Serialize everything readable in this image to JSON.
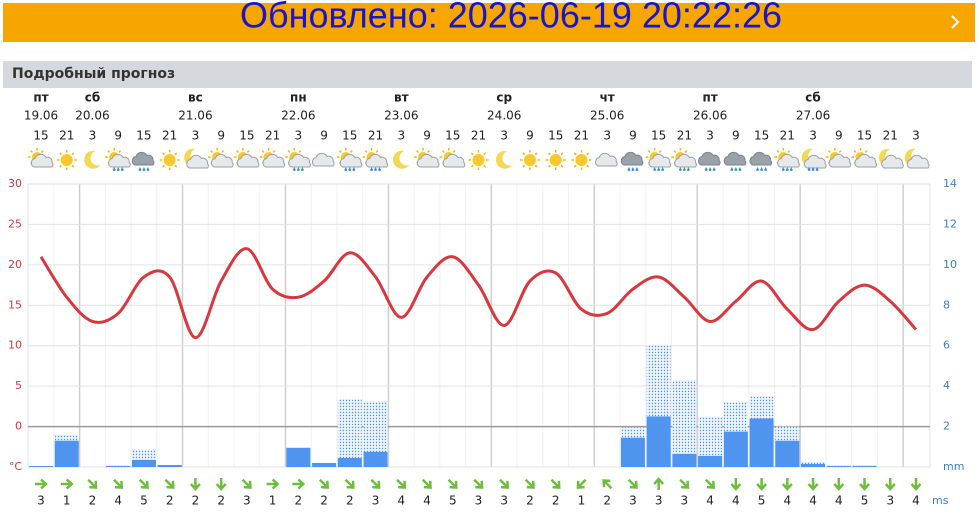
{
  "banner": {
    "updated": "Обновлено: 2026-06-19 20:22:26"
  },
  "section_title": "Подробный прогноз",
  "days": [
    {
      "name": "пт",
      "date": "19.06"
    },
    {
      "name": "сб",
      "date": "20.06"
    },
    {
      "name": "вс",
      "date": "21.06"
    },
    {
      "name": "пн",
      "date": "22.06"
    },
    {
      "name": "вт",
      "date": "23.06"
    },
    {
      "name": "ср",
      "date": "24.06"
    },
    {
      "name": "чт",
      "date": "25.06"
    },
    {
      "name": "пт",
      "date": "26.06"
    },
    {
      "name": "сб",
      "date": "27.06"
    }
  ],
  "chart_data": {
    "type": "line",
    "categories": [
      "15",
      "21",
      "3",
      "9",
      "15",
      "21",
      "3",
      "9",
      "15",
      "21",
      "3",
      "9",
      "15",
      "21",
      "3",
      "9",
      "15",
      "21",
      "3",
      "9",
      "15",
      "21",
      "3",
      "9",
      "15",
      "21",
      "3",
      "9",
      "15",
      "21",
      "3",
      "9",
      "15",
      "21",
      "3"
    ],
    "ylim": [
      -5,
      30
    ],
    "yticks": [
      {
        "value": -5,
        "label": "°C"
      },
      0,
      5,
      10,
      15,
      20,
      25,
      30
    ],
    "y2lim": [
      0,
      14
    ],
    "y2ticks": [
      {
        "value": 0,
        "label": "mm"
      },
      2,
      4,
      6,
      8,
      10,
      12,
      14
    ],
    "grid": true,
    "series": [
      {
        "type": "line",
        "axis": "y",
        "color": "#d9363e",
        "values": [
          21,
          16,
          13,
          14,
          18.5,
          18.5,
          11,
          18,
          22,
          17,
          16,
          18,
          21.5,
          18.5,
          13.5,
          18.5,
          21,
          17.5,
          12.5,
          18,
          19,
          14.5,
          14,
          17,
          18.5,
          16,
          13,
          15.5,
          18,
          14.5,
          12,
          15.5,
          17.5,
          15.5,
          12
        ]
      },
      {
        "type": "bar",
        "axis": "y2",
        "color": "#a9c9f5",
        "pattern": "dots",
        "values": [
          0.05,
          1.6,
          0,
          0.1,
          0.85,
          0.1,
          0,
          0,
          0,
          0,
          0.95,
          0.2,
          3.35,
          3.25,
          0,
          0,
          0,
          0,
          0,
          0,
          0,
          0,
          0,
          1.95,
          6.05,
          4.3,
          2.5,
          3.2,
          3.5,
          2,
          0.25,
          0.1,
          0.1,
          0,
          0
        ]
      },
      {
        "type": "bar",
        "axis": "y2",
        "color": "#4f94ef",
        "values": [
          0.05,
          1.3,
          0,
          0.05,
          0.35,
          0.1,
          0,
          0,
          0,
          0,
          0.95,
          0.2,
          0.45,
          0.75,
          0,
          0,
          0,
          0,
          0,
          0,
          0,
          0,
          0,
          1.45,
          2.5,
          0.65,
          0.55,
          1.75,
          2.4,
          1.3,
          0.15,
          0.05,
          0.05,
          0,
          0
        ]
      }
    ],
    "wind": {
      "color": "#6cbf3c",
      "unit": "ms",
      "speed": [
        3,
        1,
        2,
        4,
        5,
        2,
        2,
        2,
        3,
        1,
        2,
        2,
        2,
        3,
        4,
        4,
        5,
        3,
        3,
        2,
        2,
        1,
        2,
        3,
        3,
        3,
        4,
        4,
        5,
        4,
        4,
        4,
        5,
        3,
        4
      ],
      "direction": [
        90,
        90,
        135,
        135,
        135,
        135,
        180,
        180,
        135,
        90,
        90,
        135,
        135,
        135,
        135,
        135,
        135,
        135,
        135,
        135,
        135,
        225,
        315,
        135,
        0,
        135,
        135,
        180,
        180,
        180,
        180,
        180,
        180,
        180,
        180
      ]
    }
  }
}
